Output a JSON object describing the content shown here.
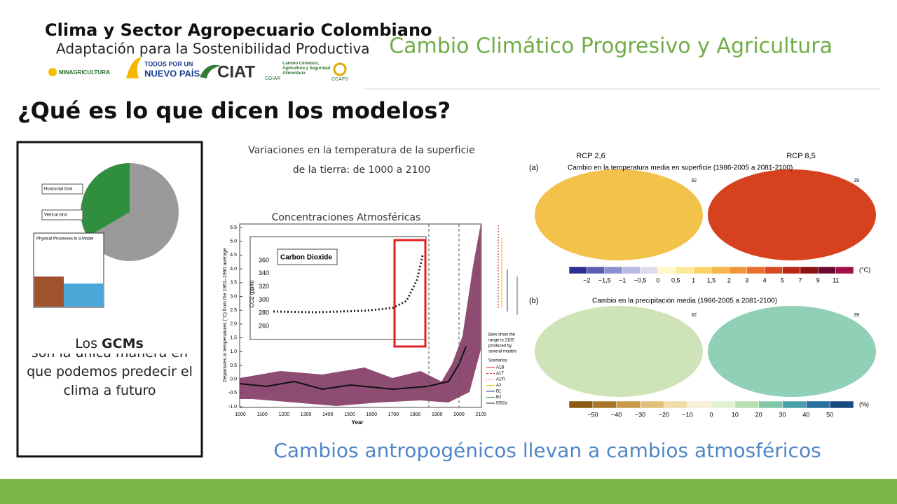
{
  "header": {
    "logo_title": "Clima y Sector Agropecuario Colombiano",
    "logo_subtitle": "Adaptación para la Sostenibilidad Productiva",
    "logos": [
      "MINAGRICULTURA",
      "TODOS POR UN",
      "NUEVO PAÍS",
      "CIAT",
      "CGIAR",
      "Cambio Climático, Agricultura y Seguridad Alimentaria",
      "CCAFS"
    ],
    "title": "Cambio Climático Progresivo y Agricultura"
  },
  "heading": "¿Qué es lo que dicen los modelos?",
  "left_box": {
    "diagram_labels": [
      "Horizontal Grid",
      "Vertical Grid",
      "Physical Processes in a Model"
    ],
    "text_before": "Los ",
    "text_bold": "GCMs",
    "text_after": " son la única manera en que podemos predecir el clima a futuro"
  },
  "middle": {
    "caption_line1": "Variaciones en la temperatura de la superficie",
    "caption_line2": "de la tierra: de 1000 a 2100",
    "caption2": "Concentraciones Atmosféricas",
    "chart": {
      "y_label": "Departures in temperatures (°C) from the 1961–1990 average",
      "x_label": "Year",
      "yticks": [
        "5.5",
        "5.0",
        "4.5",
        "4.0",
        "3.5",
        "3.0",
        "2.5",
        "2.0",
        "1.5",
        "1.0",
        "0.5",
        "0.0",
        "-0.5",
        "-1.0"
      ],
      "xticks": [
        "1000",
        "1100",
        "1200",
        "1300",
        "1400",
        "1500",
        "1600",
        "1700",
        "1800",
        "1900",
        "2000",
        "2100"
      ],
      "inset_title": "Carbon Dioxide",
      "inset_y_label": "CO2 (ppm)",
      "inset_yticks": [
        "360",
        "340",
        "320",
        "300",
        "280",
        "260"
      ],
      "bars_note": [
        "Bars show the",
        "range in 2100",
        "produced by",
        "several models"
      ],
      "scenarios_title": "Scenarios",
      "scenarios": [
        "A1B",
        "A1T",
        "A1FI",
        "A2",
        "B1",
        "B2",
        "IS92a"
      ]
    }
  },
  "maps": {
    "rcp_a": "RCP 2,6",
    "rcp_b": "RCP 8,5",
    "panel_a": "(a)",
    "title_a": "Cambio en la temperatura media en superficie (1986-2005 a 2081-2100)",
    "count_a1": "32",
    "count_a2": "39",
    "scale_a": [
      "−2",
      "−1,5",
      "−1",
      "−0,5",
      "0",
      "0,5",
      "1",
      "1,5",
      "2",
      "3",
      "4",
      "5",
      "7",
      "9",
      "11"
    ],
    "unit_a": "(°C)",
    "panel_b": "(b)",
    "title_b": "Cambio en la precipitación media (1986-2005 a 2081-2100)",
    "count_b1": "32",
    "count_b2": "39",
    "scale_b": [
      "−50",
      "−40",
      "−30",
      "−20",
      "−10",
      "0",
      "10",
      "20",
      "30",
      "40",
      "50"
    ],
    "unit_b": "(%)"
  },
  "caption": "Cambios antropogénicos llevan a cambios atmosféricos"
}
